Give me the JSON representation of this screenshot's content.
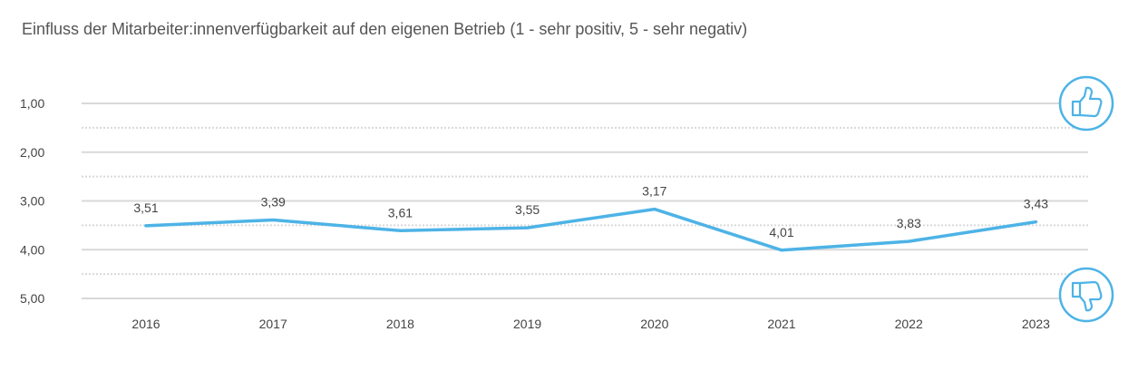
{
  "chart_data": {
    "type": "line",
    "title": "Einfluss der Mitarbeiter:innenverfügbarkeit auf den eigenen Betrieb (1 - sehr positiv, 5 - sehr negativ)",
    "xlabel": "",
    "ylabel": "",
    "categories": [
      "2016",
      "2017",
      "2018",
      "2019",
      "2020",
      "2021",
      "2022",
      "2023"
    ],
    "series": [
      {
        "values": [
          3.51,
          3.39,
          3.61,
          3.55,
          3.17,
          4.01,
          3.83,
          3.43
        ]
      }
    ],
    "data_labels": [
      "3,51",
      "3,39",
      "3,61",
      "3,55",
      "3,17",
      "4,01",
      "3,83",
      "3,43"
    ],
    "y_tick_labels": [
      "1,00",
      "2,00",
      "3,00",
      "4,00",
      "5,00"
    ],
    "y_ticks": [
      1,
      2,
      3,
      4,
      5
    ],
    "ylim": [
      1,
      5
    ],
    "y_inverted": true,
    "grid": true,
    "line_color": "#4db3e6",
    "grid_color": "#d9d9d9",
    "icons": {
      "top": "thumbs-up-icon",
      "bottom": "thumbs-down-icon"
    }
  }
}
